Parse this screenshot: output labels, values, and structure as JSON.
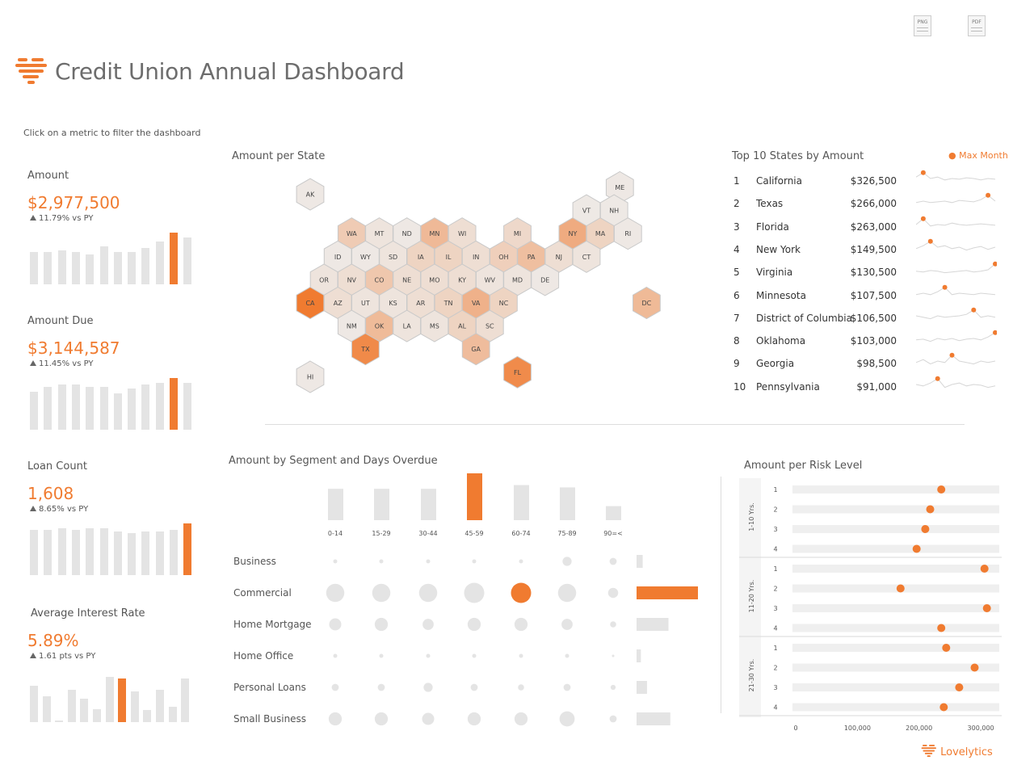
{
  "header": {
    "title": "Credit Union Annual Dashboard",
    "hint": "Click on a metric to filter the dashboard",
    "export_png": "PNG",
    "export_pdf": "PDF",
    "brand": "Lovelytics"
  },
  "colors": {
    "accent": "#f07b30",
    "bar": "#e4e4e4",
    "text": "#555555"
  },
  "kpis": [
    {
      "label": "Amount",
      "value": "$2,977,500",
      "change": "11.79% vs PY",
      "bars": [
        0.63,
        0.63,
        0.65,
        0.63,
        0.58,
        0.73,
        0.63,
        0.63,
        0.7,
        0.83,
        1.0,
        0.9
      ],
      "highlight": 10
    },
    {
      "label": "Amount Due",
      "value": "$3,144,587",
      "change": "11.45% vs PY",
      "bars": [
        0.73,
        0.83,
        0.88,
        0.88,
        0.83,
        0.83,
        0.7,
        0.8,
        0.88,
        0.9,
        1.0,
        0.9
      ],
      "highlight": 10
    },
    {
      "label": "Loan Count",
      "value": "1,608",
      "change": "8.65% vs PY",
      "bars": [
        0.87,
        0.87,
        0.9,
        0.87,
        0.9,
        0.9,
        0.85,
        0.82,
        0.85,
        0.85,
        0.87,
        1.0
      ],
      "highlight": 11
    },
    {
      "label": "Average Interest Rate",
      "value": "5.89%",
      "change": "1.61 pts vs PY",
      "bars": [
        0.71,
        0.5,
        0.03,
        0.62,
        0.46,
        0.25,
        0.87,
        0.84,
        0.6,
        0.24,
        0.63,
        0.3,
        0.84
      ],
      "highlight": 7
    }
  ],
  "state_map": {
    "title": "Amount per State",
    "states": [
      {
        "abbr": "AK",
        "value": 5000
      },
      {
        "abbr": "ME",
        "value": 5000
      },
      {
        "abbr": "VT",
        "value": 4000
      },
      {
        "abbr": "NH",
        "value": 4000
      },
      {
        "abbr": "WA",
        "value": 60000
      },
      {
        "abbr": "MT",
        "value": 10000
      },
      {
        "abbr": "ND",
        "value": 5000
      },
      {
        "abbr": "MN",
        "value": 107500
      },
      {
        "abbr": "WI",
        "value": 20000
      },
      {
        "abbr": "MI",
        "value": 30000
      },
      {
        "abbr": "NY",
        "value": 149500
      },
      {
        "abbr": "MA",
        "value": 40000
      },
      {
        "abbr": "RI",
        "value": 5000
      },
      {
        "abbr": "ID",
        "value": 5000
      },
      {
        "abbr": "WY",
        "value": 5000
      },
      {
        "abbr": "SD",
        "value": 10000
      },
      {
        "abbr": "IA",
        "value": 40000
      },
      {
        "abbr": "IL",
        "value": 40000
      },
      {
        "abbr": "IN",
        "value": 20000
      },
      {
        "abbr": "OH",
        "value": 50000
      },
      {
        "abbr": "PA",
        "value": 91000
      },
      {
        "abbr": "NJ",
        "value": 20000
      },
      {
        "abbr": "CT",
        "value": 10000
      },
      {
        "abbr": "OR",
        "value": 10000
      },
      {
        "abbr": "NV",
        "value": 20000
      },
      {
        "abbr": "CO",
        "value": 70000
      },
      {
        "abbr": "NE",
        "value": 20000
      },
      {
        "abbr": "MO",
        "value": 20000
      },
      {
        "abbr": "KY",
        "value": 20000
      },
      {
        "abbr": "WV",
        "value": 10000
      },
      {
        "abbr": "MD",
        "value": 10000
      },
      {
        "abbr": "DE",
        "value": 5000
      },
      {
        "abbr": "CA",
        "value": 326500
      },
      {
        "abbr": "AZ",
        "value": 20000
      },
      {
        "abbr": "UT",
        "value": 10000
      },
      {
        "abbr": "KS",
        "value": 10000
      },
      {
        "abbr": "AR",
        "value": 20000
      },
      {
        "abbr": "TN",
        "value": 40000
      },
      {
        "abbr": "VA",
        "value": 130500
      },
      {
        "abbr": "NC",
        "value": 40000
      },
      {
        "abbr": "DC",
        "value": 106500
      },
      {
        "abbr": "NM",
        "value": 5000
      },
      {
        "abbr": "OK",
        "value": 103000
      },
      {
        "abbr": "LA",
        "value": 10000
      },
      {
        "abbr": "MS",
        "value": 10000
      },
      {
        "abbr": "AL",
        "value": 40000
      },
      {
        "abbr": "SC",
        "value": 20000
      },
      {
        "abbr": "TX",
        "value": 266000
      },
      {
        "abbr": "GA",
        "value": 98500
      },
      {
        "abbr": "HI",
        "value": 5000
      },
      {
        "abbr": "FL",
        "value": 263000
      }
    ]
  },
  "top10": {
    "title": "Top 10 States by Amount",
    "legend": "Max Month",
    "rows": [
      {
        "rank": "1",
        "state": "California",
        "amount": "$326,500",
        "spark": [
          0.6,
          0.9,
          0.5,
          0.6,
          0.4,
          0.5,
          0.45,
          0.55,
          0.5,
          0.4,
          0.5,
          0.45
        ],
        "max": 1
      },
      {
        "rank": "2",
        "state": "Texas",
        "amount": "$266,000",
        "spark": [
          0.4,
          0.5,
          0.4,
          0.45,
          0.5,
          0.4,
          0.55,
          0.5,
          0.45,
          0.6,
          0.9,
          0.5
        ],
        "max": 10
      },
      {
        "rank": "3",
        "state": "Florida",
        "amount": "$263,000",
        "spark": [
          0.5,
          0.9,
          0.4,
          0.5,
          0.45,
          0.6,
          0.5,
          0.45,
          0.5,
          0.55,
          0.5,
          0.45
        ],
        "max": 1
      },
      {
        "rank": "4",
        "state": "New York",
        "amount": "$149,500",
        "spark": [
          0.4,
          0.6,
          0.9,
          0.5,
          0.6,
          0.4,
          0.5,
          0.3,
          0.45,
          0.55,
          0.35,
          0.5
        ],
        "max": 2
      },
      {
        "rank": "5",
        "state": "Virginia",
        "amount": "$130,500",
        "spark": [
          0.4,
          0.35,
          0.45,
          0.4,
          0.3,
          0.35,
          0.4,
          0.45,
          0.35,
          0.4,
          0.5,
          0.9
        ],
        "max": 11
      },
      {
        "rank": "6",
        "state": "Minnesota",
        "amount": "$107,500",
        "spark": [
          0.4,
          0.5,
          0.4,
          0.6,
          0.9,
          0.4,
          0.5,
          0.45,
          0.4,
          0.5,
          0.45,
          0.4
        ],
        "max": 4
      },
      {
        "rank": "7",
        "state": "District of Columbia",
        "amount": "$106,500",
        "spark": [
          0.5,
          0.4,
          0.3,
          0.5,
          0.4,
          0.45,
          0.5,
          0.6,
          0.9,
          0.4,
          0.5,
          0.4
        ],
        "max": 8
      },
      {
        "rank": "8",
        "state": "Oklahoma",
        "amount": "$103,000",
        "spark": [
          0.4,
          0.45,
          0.3,
          0.5,
          0.4,
          0.5,
          0.35,
          0.45,
          0.5,
          0.4,
          0.6,
          0.9
        ],
        "max": 11
      },
      {
        "rank": "9",
        "state": "Georgia",
        "amount": "$98,500",
        "spark": [
          0.4,
          0.6,
          0.3,
          0.5,
          0.4,
          0.9,
          0.5,
          0.4,
          0.3,
          0.5,
          0.4,
          0.5
        ],
        "max": 5
      },
      {
        "rank": "10",
        "state": "Pennsylvania",
        "amount": "$91,000",
        "spark": [
          0.5,
          0.4,
          0.6,
          0.9,
          0.3,
          0.5,
          0.6,
          0.4,
          0.5,
          0.45,
          0.3,
          0.4
        ],
        "max": 3
      }
    ]
  },
  "segments": {
    "title": "Amount by Segment and Days Overdue",
    "day_buckets": [
      "0-14",
      "15-29",
      "30-44",
      "45-59",
      "60-74",
      "75-89",
      "90=<"
    ],
    "bucket_totals": [
      0.67,
      0.67,
      0.67,
      1.0,
      0.75,
      0.7,
      0.3
    ],
    "highlight_bucket": 3,
    "rows": [
      {
        "label": "Business",
        "sizes": [
          0.2,
          0.2,
          0.2,
          0.2,
          0.2,
          0.45,
          0.35
        ],
        "total": 0.1
      },
      {
        "label": "Commercial",
        "sizes": [
          0.9,
          0.9,
          0.9,
          1.0,
          1.0,
          0.9,
          0.5
        ],
        "total": 1.0,
        "highlight": 4
      },
      {
        "label": "Home Mortgage",
        "sizes": [
          0.6,
          0.65,
          0.55,
          0.65,
          0.65,
          0.55,
          0.3
        ],
        "total": 0.52
      },
      {
        "label": "Home Office",
        "sizes": [
          0.2,
          0.2,
          0.2,
          0.2,
          0.2,
          0.2,
          0.12
        ],
        "total": 0.07
      },
      {
        "label": "Personal Loans",
        "sizes": [
          0.35,
          0.35,
          0.45,
          0.35,
          0.3,
          0.35,
          0.25
        ],
        "total": 0.17
      },
      {
        "label": "Small Business",
        "sizes": [
          0.65,
          0.65,
          0.6,
          0.65,
          0.65,
          0.75,
          0.35
        ],
        "total": 0.55
      }
    ]
  },
  "risk": {
    "title": "Amount per Risk Level",
    "groups": [
      {
        "label": "1-10 Yrs.",
        "levels": [
          {
            "level": "1",
            "value": 236000
          },
          {
            "level": "2",
            "value": 218000
          },
          {
            "level": "3",
            "value": 210000
          },
          {
            "level": "4",
            "value": 196000
          }
        ]
      },
      {
        "label": "11-20 Yrs.",
        "levels": [
          {
            "level": "1",
            "value": 306000
          },
          {
            "level": "2",
            "value": 170000
          },
          {
            "level": "3",
            "value": 310000
          },
          {
            "level": "4",
            "value": 236000
          }
        ]
      },
      {
        "label": "21-30 Yrs.",
        "levels": [
          {
            "level": "1",
            "value": 244000
          },
          {
            "level": "2",
            "value": 290000
          },
          {
            "level": "3",
            "value": 265000
          },
          {
            "level": "4",
            "value": 240000
          }
        ]
      }
    ],
    "x_ticks": [
      "0",
      "100,000",
      "200,000",
      "300,000"
    ],
    "x_max": 330000
  }
}
